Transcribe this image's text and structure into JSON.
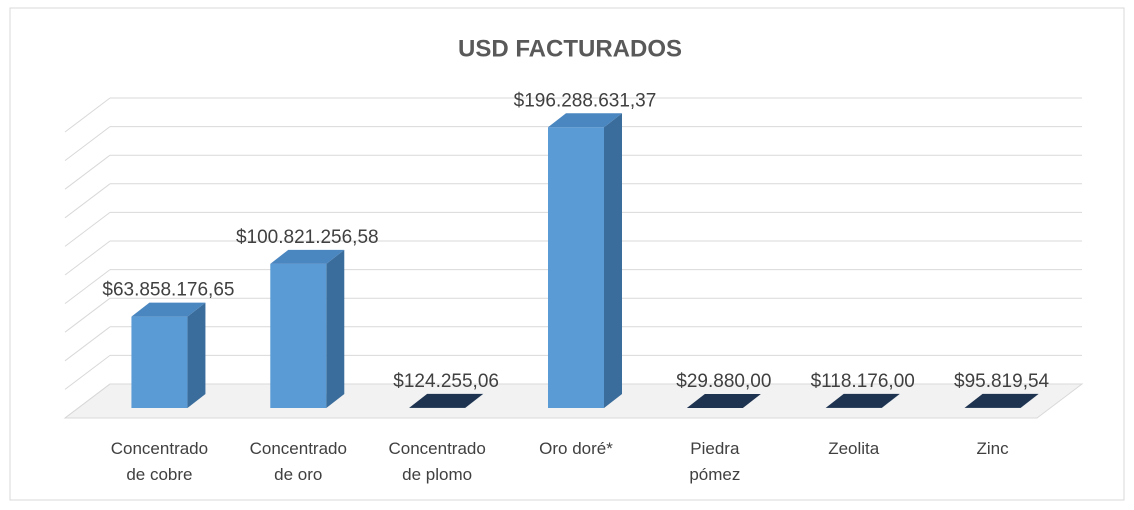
{
  "chart_data": {
    "type": "bar3d",
    "title": "USD FACTURADOS",
    "categories": [
      "Concentrado de cobre",
      "Concentrado de oro",
      "Concentrado de plomo",
      "Oro doré*",
      "Piedra pómez",
      "Zeolita",
      "Zinc"
    ],
    "values": [
      63858176.65,
      100821256.58,
      124255.06,
      196288631.37,
      29880.0,
      118176.0,
      95819.54
    ],
    "value_labels": [
      "$63.858.176,65",
      "$100.821.256,58",
      "$124.255,06",
      "$196.288.631,37",
      "$29.880,00",
      "$118.176,00",
      "$95.819,54"
    ],
    "color": "#5b9bd5",
    "ylim": [
      0,
      200000000
    ],
    "yticks": [
      0,
      20000000,
      40000000,
      60000000,
      80000000,
      100000000,
      120000000,
      140000000,
      160000000,
      180000000,
      200000000
    ],
    "grid": true
  }
}
